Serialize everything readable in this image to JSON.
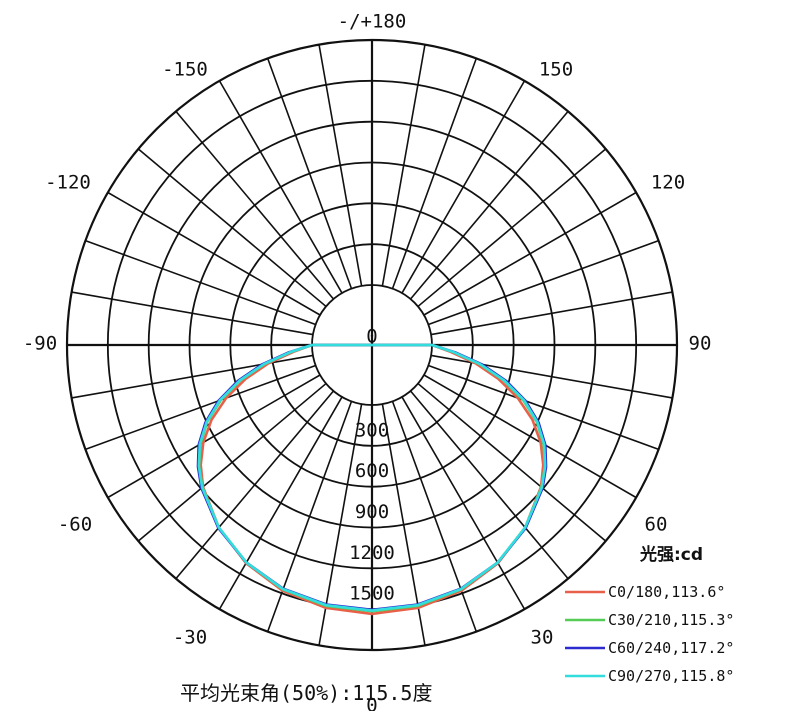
{
  "chart_data": {
    "type": "polar",
    "angle_labels": [
      {
        "angle": 180,
        "text": "-/+180"
      },
      {
        "angle": -150,
        "text": "-150"
      },
      {
        "angle": 150,
        "text": "150"
      },
      {
        "angle": -120,
        "text": "-120"
      },
      {
        "angle": 120,
        "text": "120"
      },
      {
        "angle": -90,
        "text": "-90"
      },
      {
        "angle": 90,
        "text": "90"
      },
      {
        "angle": -60,
        "text": "-60"
      },
      {
        "angle": 60,
        "text": "60"
      },
      {
        "angle": -30,
        "text": "-30"
      },
      {
        "angle": 30,
        "text": "30"
      },
      {
        "angle": 0,
        "text": "0"
      }
    ],
    "rings": [
      0,
      300,
      600,
      900,
      1200,
      1500
    ],
    "ring_labels": [
      "0",
      "300",
      "600",
      "900",
      "1200",
      "1500"
    ],
    "r_max": 1650,
    "spoke_step_deg": 10,
    "legend_title": "光强:cd",
    "series": [
      {
        "name": "C0/180,113.6°",
        "color": "#e8604a",
        "angles": [
          0,
          10,
          20,
          30,
          40,
          50,
          55,
          60,
          65,
          70,
          75,
          80,
          85,
          90
        ],
        "values": [
          1535,
          1520,
          1480,
          1410,
          1310,
          1180,
          1095,
          990,
          860,
          700,
          520,
          330,
          140,
          0
        ]
      },
      {
        "name": "C30/210,115.3°",
        "color": "#55cc55",
        "angles": [
          0,
          10,
          20,
          30,
          40,
          50,
          55,
          60,
          65,
          70,
          75,
          80,
          85,
          90
        ],
        "values": [
          1515,
          1505,
          1470,
          1405,
          1310,
          1185,
          1110,
          1015,
          895,
          740,
          560,
          360,
          160,
          0
        ]
      },
      {
        "name": "C60/240,117.2°",
        "color": "#2b2bd0",
        "angles": [
          0,
          10,
          20,
          30,
          40,
          50,
          55,
          60,
          65,
          70,
          75,
          80,
          85,
          90
        ],
        "values": [
          1505,
          1495,
          1465,
          1405,
          1315,
          1195,
          1120,
          1030,
          910,
          760,
          580,
          380,
          170,
          0
        ]
      },
      {
        "name": "C90/270,115.8°",
        "color": "#33dddd",
        "angles": [
          0,
          10,
          20,
          30,
          40,
          50,
          55,
          60,
          65,
          70,
          75,
          80,
          85,
          90
        ],
        "values": [
          1510,
          1500,
          1468,
          1405,
          1310,
          1188,
          1112,
          1020,
          900,
          748,
          565,
          365,
          162,
          0
        ]
      }
    ],
    "footer": "平均光束角(50%):115.5度"
  }
}
